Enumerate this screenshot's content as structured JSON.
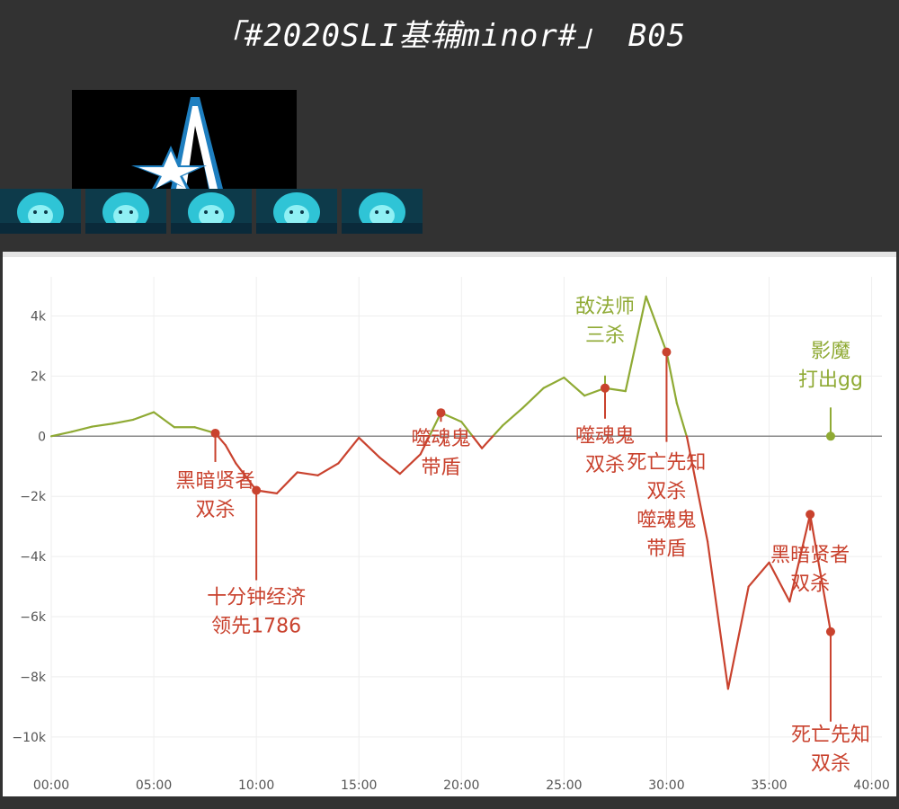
{
  "title": "「#2020SLI基辅minor#」 B05",
  "team_logo": "team-aster-logo",
  "hero_portraits": [
    "storm-spirit",
    "storm-spirit",
    "storm-spirit",
    "storm-spirit",
    "storm-spirit"
  ],
  "colors": {
    "positive": "#8faa34",
    "negative": "#c9422e",
    "grid": "#eeeeee",
    "zero": "#888888"
  },
  "chart_data": {
    "type": "line",
    "title": "",
    "xlabel": "",
    "ylabel": "",
    "xlim": [
      0,
      40.5
    ],
    "ylim": [
      -11.5,
      5.3
    ],
    "x_ticks": [
      0,
      5,
      10,
      15,
      20,
      25,
      30,
      35,
      40
    ],
    "x_tick_labels": [
      "00:00",
      "05:00",
      "10:00",
      "15:00",
      "20:00",
      "25:00",
      "30:00",
      "35:00",
      "40:00"
    ],
    "y_ticks": [
      4,
      2,
      0,
      -2,
      -4,
      -6,
      -8,
      -10
    ],
    "y_tick_labels": [
      "4k",
      "2k",
      "0",
      "−2k",
      "−4k",
      "−6k",
      "−8k",
      "−10k"
    ],
    "series": [
      {
        "values_unit": "k gold",
        "x": [
          0,
          1,
          2,
          3,
          4,
          5,
          6,
          7,
          8,
          8.5,
          9,
          10,
          11,
          12,
          13,
          14,
          15,
          16,
          17,
          18,
          19,
          20,
          21,
          22,
          23,
          24,
          25,
          26,
          27,
          28,
          29,
          30,
          30.5,
          31,
          32,
          33,
          34,
          35,
          36,
          37,
          38
        ],
        "y": [
          0,
          0.15,
          0.32,
          0.42,
          0.55,
          0.8,
          0.3,
          0.3,
          0.1,
          -0.3,
          -0.9,
          -1.8,
          -1.9,
          -1.2,
          -1.3,
          -0.9,
          -0.05,
          -0.7,
          -1.25,
          -0.6,
          0.78,
          0.48,
          -0.4,
          0.35,
          0.95,
          1.6,
          1.95,
          1.35,
          1.6,
          1.5,
          4.65,
          2.8,
          1.1,
          -0.05,
          -3.5,
          -8.4,
          -5,
          -4.2,
          -5.5,
          -2.6,
          -6.5
        ]
      }
    ],
    "annotations": [
      {
        "x": 8,
        "y": 0.1,
        "lines": [
          "黑暗贤者",
          "双杀"
        ],
        "side": "neg"
      },
      {
        "x": 10,
        "y": -1.8,
        "lines": [
          "十分钟经济",
          "领先1786"
        ],
        "side": "neg"
      },
      {
        "x": 19,
        "y": 0.78,
        "lines": [
          "噬魂鬼",
          "带盾"
        ],
        "side": "neg"
      },
      {
        "x": 27,
        "y": 1.6,
        "lines": [
          "敌法师",
          "三杀"
        ],
        "side": "pos"
      },
      {
        "x": 27,
        "y": 1.6,
        "lines": [
          "噬魂鬼",
          "双杀"
        ],
        "side": "neg"
      },
      {
        "x": 30,
        "y": 2.8,
        "lines": [
          "死亡先知",
          "双杀",
          "噬魂鬼",
          "带盾"
        ],
        "side": "neg"
      },
      {
        "x": 38,
        "y": 0,
        "lines": [
          "影魔",
          "打出gg"
        ],
        "side": "pos"
      },
      {
        "x": 37,
        "y": -2.6,
        "lines": [
          "黑暗贤者",
          "双杀"
        ],
        "side": "neg"
      },
      {
        "x": 38,
        "y": -6.5,
        "lines": [
          "死亡先知",
          "双杀"
        ],
        "side": "neg"
      }
    ]
  }
}
